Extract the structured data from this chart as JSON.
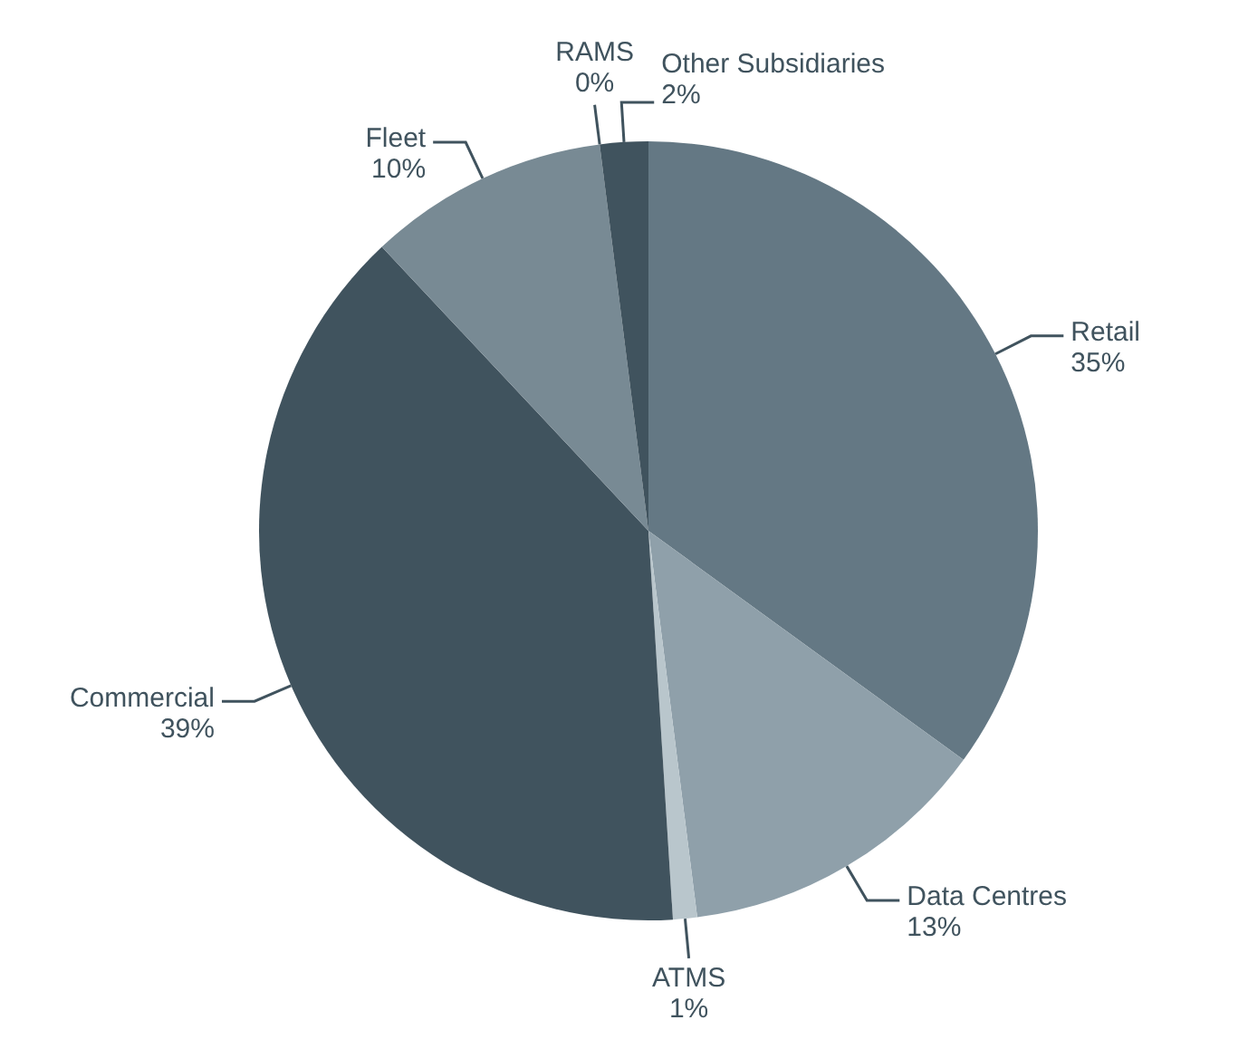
{
  "chart_data": {
    "type": "pie",
    "categories": [
      "Retail",
      "Data Centres",
      "ATMS",
      "Commercial",
      "Fleet",
      "RAMS",
      "Other Subsidiaries"
    ],
    "values": [
      35,
      13,
      1,
      39,
      10,
      0,
      2
    ],
    "value_labels": [
      "35%",
      "13%",
      "1%",
      "39%",
      "10%",
      "0%",
      "2%"
    ],
    "colors": [
      "#647884",
      "#8fa0aa",
      "#b9c6cc",
      "#40535e",
      "#788a94",
      "#c3ccd1",
      "#40535e"
    ],
    "legend": false
  }
}
